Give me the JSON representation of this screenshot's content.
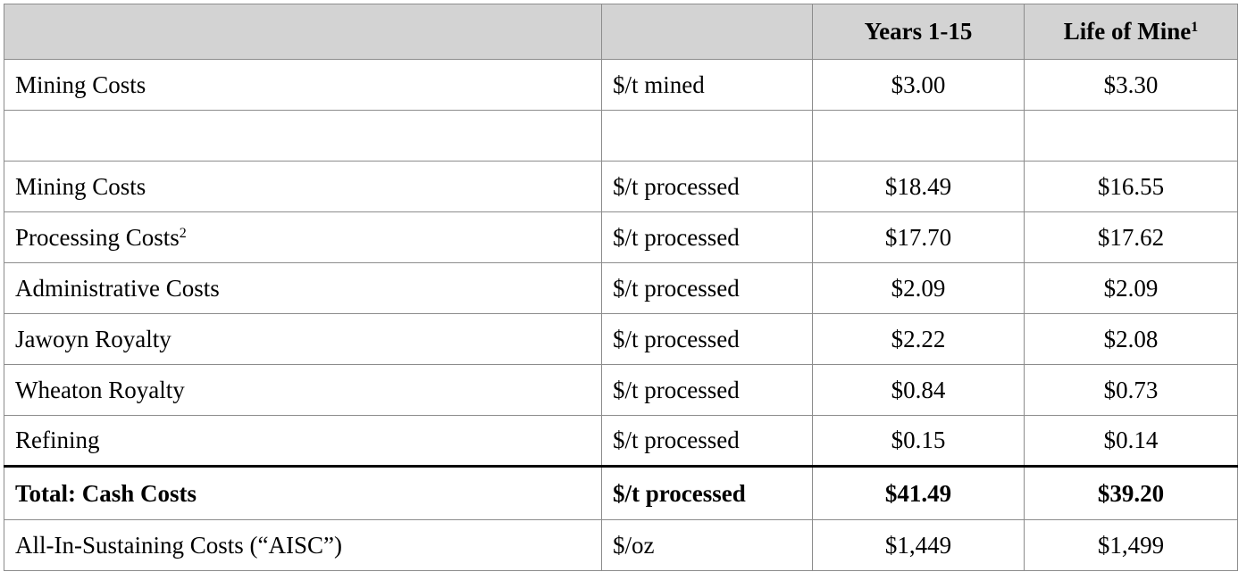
{
  "header": {
    "col1": "",
    "col2": "",
    "col3": "Years 1-15",
    "col4": "Life of Mine",
    "col4_sup": "1"
  },
  "rows": [
    {
      "label": "Mining Costs",
      "label_sup": "",
      "unit": "$/t mined",
      "y1_15": "$3.00",
      "lom": "$3.30"
    },
    {
      "label": "",
      "label_sup": "",
      "unit": "",
      "y1_15": "",
      "lom": ""
    },
    {
      "label": "Mining Costs",
      "label_sup": "",
      "unit": "$/t processed",
      "y1_15": "$18.49",
      "lom": "$16.55"
    },
    {
      "label": "Processing Costs",
      "label_sup": "2",
      "unit": "$/t processed",
      "y1_15": "$17.70",
      "lom": "$17.62"
    },
    {
      "label": "Administrative Costs",
      "label_sup": "",
      "unit": "$/t processed",
      "y1_15": "$2.09",
      "lom": "$2.09"
    },
    {
      "label": "Jawoyn Royalty",
      "label_sup": "",
      "unit": "$/t processed",
      "y1_15": "$2.22",
      "lom": "$2.08"
    },
    {
      "label": "Wheaton Royalty",
      "label_sup": "",
      "unit": "$/t processed",
      "y1_15": "$0.84",
      "lom": "$0.73"
    },
    {
      "label": "Refining",
      "label_sup": "",
      "unit": "$/t processed",
      "y1_15": "$0.15",
      "lom": "$0.14"
    },
    {
      "label": "Total: Cash Costs",
      "label_sup": "",
      "unit": "$/t processed",
      "y1_15": "$41.49",
      "lom": "$39.20"
    },
    {
      "label": "All-In-Sustaining Costs (“AISC”)",
      "label_sup": "",
      "unit": "$/oz",
      "y1_15": "$1,449",
      "lom": "$1,499"
    }
  ]
}
